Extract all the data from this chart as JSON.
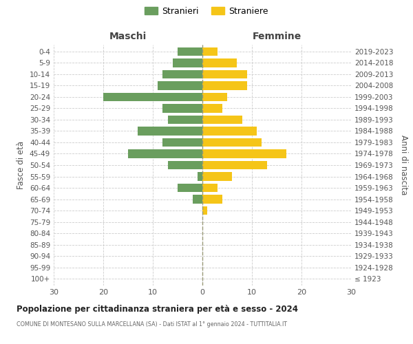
{
  "age_groups": [
    "100+",
    "95-99",
    "90-94",
    "85-89",
    "80-84",
    "75-79",
    "70-74",
    "65-69",
    "60-64",
    "55-59",
    "50-54",
    "45-49",
    "40-44",
    "35-39",
    "30-34",
    "25-29",
    "20-24",
    "15-19",
    "10-14",
    "5-9",
    "0-4"
  ],
  "birth_years": [
    "≤ 1923",
    "1924-1928",
    "1929-1933",
    "1934-1938",
    "1939-1943",
    "1944-1948",
    "1949-1953",
    "1954-1958",
    "1959-1963",
    "1964-1968",
    "1969-1973",
    "1974-1978",
    "1979-1983",
    "1984-1988",
    "1989-1993",
    "1994-1998",
    "1999-2003",
    "2004-2008",
    "2009-2013",
    "2014-2018",
    "2019-2023"
  ],
  "males": [
    0,
    0,
    0,
    0,
    0,
    0,
    0,
    2,
    5,
    1,
    7,
    15,
    8,
    13,
    7,
    8,
    20,
    9,
    8,
    6,
    5
  ],
  "females": [
    0,
    0,
    0,
    0,
    0,
    0,
    1,
    4,
    3,
    6,
    13,
    17,
    12,
    11,
    8,
    4,
    5,
    9,
    9,
    7,
    3
  ],
  "male_color": "#6a9e5e",
  "female_color": "#f5c518",
  "background_color": "#ffffff",
  "grid_color": "#cccccc",
  "title": "Popolazione per cittadinanza straniera per età e sesso - 2024",
  "subtitle": "COMUNE DI MONTESANO SULLA MARCELLANA (SA) - Dati ISTAT al 1° gennaio 2024 - TUTTITALIA.IT",
  "xlabel_left": "Maschi",
  "xlabel_right": "Femmine",
  "ylabel_left": "Fasce di età",
  "ylabel_right": "Anni di nascita",
  "legend_male": "Stranieri",
  "legend_female": "Straniere",
  "xlim": 30
}
